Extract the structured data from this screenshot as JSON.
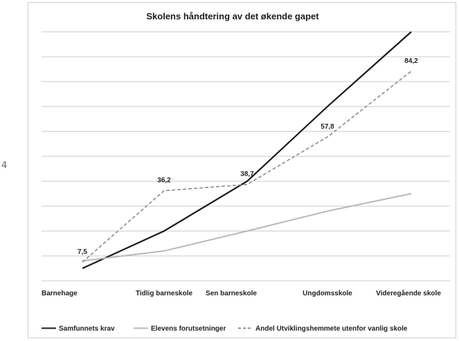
{
  "chart_data": {
    "type": "line",
    "title": "Skolens håndtering av det økende gapet",
    "xlabel": "",
    "ylabel": "",
    "categories": [
      "Barnehage",
      "Tidlig barneskole",
      "Sen barneskole",
      "Ungdomsskole",
      "Videregående skole"
    ],
    "ylim": [
      0,
      100
    ],
    "grid": true,
    "legend_position": "bottom",
    "series": [
      {
        "name": "Samfunnets krav",
        "values": [
          5,
          20,
          40,
          70,
          100
        ],
        "color": "#1a1a1a",
        "dash": "solid",
        "labels": [
          "",
          "",
          "",
          "",
          ""
        ]
      },
      {
        "name": "Elevens forutsetninger",
        "values": [
          8,
          12,
          20,
          28,
          35
        ],
        "color": "#b8b8b8",
        "dash": "solid",
        "labels": [
          "",
          "",
          "",
          "",
          ""
        ]
      },
      {
        "name": "Andel Utviklingshemmete utenfor vanlig skole",
        "values": [
          7.5,
          36.2,
          38.7,
          57.8,
          84.2
        ],
        "color": "#8c8c8c",
        "dash": "dashed",
        "labels": [
          "7,5",
          "36,2",
          "38,7",
          "57,8",
          "84,2"
        ]
      }
    ]
  },
  "side_mark": "4"
}
